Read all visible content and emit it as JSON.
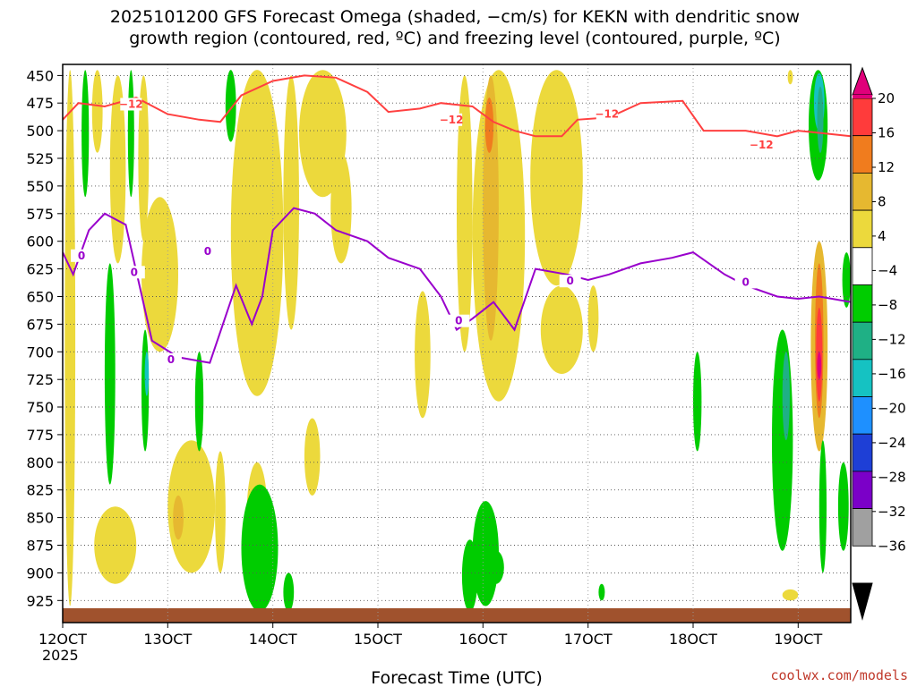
{
  "chart_data": {
    "type": "heatmap",
    "title_line1": "2025101200 GFS Forecast Omega (shaded, −cm/s) for KEKN with dendritic snow",
    "title_line2": "growth region (contoured, red, ºC) and freezing level (contoured, purple, ºC)",
    "xlabel": "Forecast Time (UTC)",
    "x_ticks": [
      "12OCT",
      "13OCT",
      "14OCT",
      "15OCT",
      "16OCT",
      "17OCT",
      "18OCT",
      "19OCT"
    ],
    "x_year": "2025",
    "x_range": [
      12,
      19.5
    ],
    "y_ticks": [
      "450",
      "475",
      "500",
      "525",
      "550",
      "575",
      "600",
      "625",
      "650",
      "675",
      "700",
      "725",
      "750",
      "775",
      "800",
      "825",
      "850",
      "875",
      "900",
      "925"
    ],
    "y_range_hPa": [
      440,
      945
    ],
    "grid": true,
    "colorbar": {
      "labels": [
        "20",
        "16",
        "12",
        "8",
        "4",
        "−4",
        "−8",
        "−12",
        "−16",
        "−20",
        "−24",
        "−28",
        "−32",
        "−36"
      ],
      "colors": [
        "#e0007a",
        "#ff3b3b",
        "#f07c1e",
        "#e6b830",
        "#ecd93c",
        "#ffffff",
        "#00cc00",
        "#1fb085",
        "#15c2c2",
        "#1e90ff",
        "#1e3fd6",
        "#7b00c8",
        "#a0a0a0",
        "#000000"
      ],
      "legend_position": "right"
    },
    "freezing_level_label": "0",
    "dendritic_label": "−12",
    "freezing_level_0C": {
      "color": "#9900cc",
      "time": [
        12.0,
        12.1,
        12.25,
        12.4,
        12.6,
        12.85,
        13.1,
        13.4,
        13.65,
        13.8,
        13.9,
        14.0,
        14.2,
        14.4,
        14.6,
        14.9,
        15.1,
        15.4,
        15.6,
        15.75,
        15.9,
        16.1,
        16.3,
        16.5,
        16.8,
        17.0,
        17.2,
        17.5,
        17.8,
        18.0,
        18.3,
        18.5,
        18.8,
        19.0,
        19.2,
        19.5
      ],
      "pressure": [
        610,
        630,
        590,
        575,
        585,
        690,
        705,
        710,
        640,
        675,
        650,
        590,
        570,
        575,
        590,
        600,
        615,
        625,
        650,
        680,
        670,
        655,
        680,
        625,
        630,
        635,
        630,
        620,
        615,
        610,
        630,
        640,
        650,
        652,
        650,
        655
      ]
    },
    "dendritic_minus12C": {
      "color": "#ff4040",
      "time": [
        12.0,
        12.15,
        12.4,
        12.7,
        13.0,
        13.3,
        13.5,
        13.7,
        14.0,
        14.3,
        14.6,
        14.9,
        15.1,
        15.4,
        15.6,
        15.9,
        16.1,
        16.3,
        16.5,
        16.75,
        16.9,
        17.2,
        17.5,
        17.9,
        18.1,
        18.5,
        18.8,
        19.0,
        19.3,
        19.5
      ],
      "pressure": [
        490,
        475,
        478,
        470,
        485,
        490,
        492,
        468,
        455,
        450,
        452,
        465,
        483,
        480,
        475,
        478,
        492,
        500,
        505,
        505,
        490,
        488,
        475,
        473,
        500,
        500,
        505,
        500,
        503,
        505
      ]
    },
    "surface": "ground",
    "credit": "coolwx.com/models"
  }
}
